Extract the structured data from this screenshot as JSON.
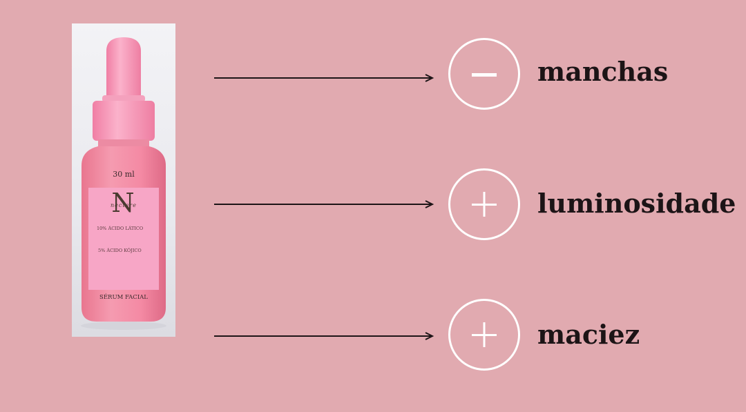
{
  "product": {
    "volume": "30 ml",
    "brand_initial": "N",
    "brand_script": "nectare",
    "ingredient_1": "10% ÁCIDO LÁTICO",
    "ingredient_2": "5% ÁCIDO KÓJICO",
    "name": "SÉRUM FACIAL"
  },
  "benefits": [
    {
      "icon": "minus-icon",
      "label": "manchas"
    },
    {
      "icon": "plus-icon",
      "label": "luminosidade"
    },
    {
      "icon": "plus-icon",
      "label": "maciez"
    }
  ],
  "colors": {
    "background": "#e1aab0",
    "bottle": "#f08fa6",
    "label": "#f7a6c6",
    "text": "#1c1416",
    "circle": "#ffffff"
  }
}
